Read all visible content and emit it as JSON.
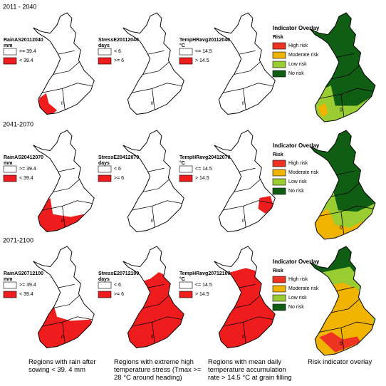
{
  "rows": [
    {
      "label": "2011 - 2040",
      "panels": [
        {
          "title": "RainAS20112040",
          "unit": "mm",
          "items": [
            {
              "label": ">= 39.4",
              "color": "#ffffff"
            },
            {
              "label": "< 39.4",
              "color": "#ee1c1c"
            }
          ]
        },
        {
          "title": "StressE20112040",
          "unit": "days",
          "items": [
            {
              "label": "< 6",
              "color": "#ffffff"
            },
            {
              "label": ">= 6",
              "color": "#ee1c1c"
            }
          ]
        },
        {
          "title": "TempHRavg20112040",
          "unit": "°C",
          "items": [
            {
              "label": "<= 14.5",
              "color": "#ffffff"
            },
            {
              "label": "> 14.5",
              "color": "#ee1c1c"
            }
          ]
        }
      ]
    },
    {
      "label": "2041-2070",
      "panels": [
        {
          "title": "RainAS20412070",
          "unit": "mm",
          "items": [
            {
              "label": ">= 39.4",
              "color": "#ffffff"
            },
            {
              "label": "< 39.4",
              "color": "#ee1c1c"
            }
          ]
        },
        {
          "title": "StressE20412070",
          "unit": "days",
          "items": [
            {
              "label": "< 6",
              "color": "#ffffff"
            },
            {
              "label": ">= 6",
              "color": "#ee1c1c"
            }
          ]
        },
        {
          "title": "TempHRavg20412070",
          "unit": "°C",
          "items": [
            {
              "label": "<= 14.5",
              "color": "#ffffff"
            },
            {
              "label": "> 14.5",
              "color": "#ee1c1c"
            }
          ]
        }
      ]
    },
    {
      "label": "2071-2100",
      "panels": [
        {
          "title": "RainAS20712100",
          "unit": "mm",
          "items": [
            {
              "label": ">= 39.4",
              "color": "#ffffff"
            },
            {
              "label": "< 39.4",
              "color": "#ee1c1c"
            }
          ]
        },
        {
          "title": "StressE20712100",
          "unit": "days",
          "items": [
            {
              "label": "< 6",
              "color": "#ffffff"
            },
            {
              "label": ">= 6",
              "color": "#ee1c1c"
            }
          ]
        },
        {
          "title": "TempHRavg20712100",
          "unit": "°C",
          "items": [
            {
              "label": "<= 14.5",
              "color": "#ffffff"
            },
            {
              "label": "> 14.5",
              "color": "#ee1c1c"
            }
          ]
        }
      ]
    }
  ],
  "overlay": {
    "title": "Indicator Overlay",
    "subtitle": "Risk",
    "items": [
      {
        "label": "High risk",
        "color": "#ee3322"
      },
      {
        "label": "Moderate risk",
        "color": "#f0b400"
      },
      {
        "label": "Low risk",
        "color": "#9acd32"
      },
      {
        "label": "No risk",
        "color": "#0f5e14"
      }
    ]
  },
  "contour_label": "0",
  "captions": [
    "Regions with rain after sowing < 39. 4 mm",
    "Regions with extreme high temperature stress (Tmax >= 28 °C around heading)",
    "Regions with mean daily temperature accumulation rate > 14.5 °C at grain filling",
    "Risk indicator overlay"
  ]
}
